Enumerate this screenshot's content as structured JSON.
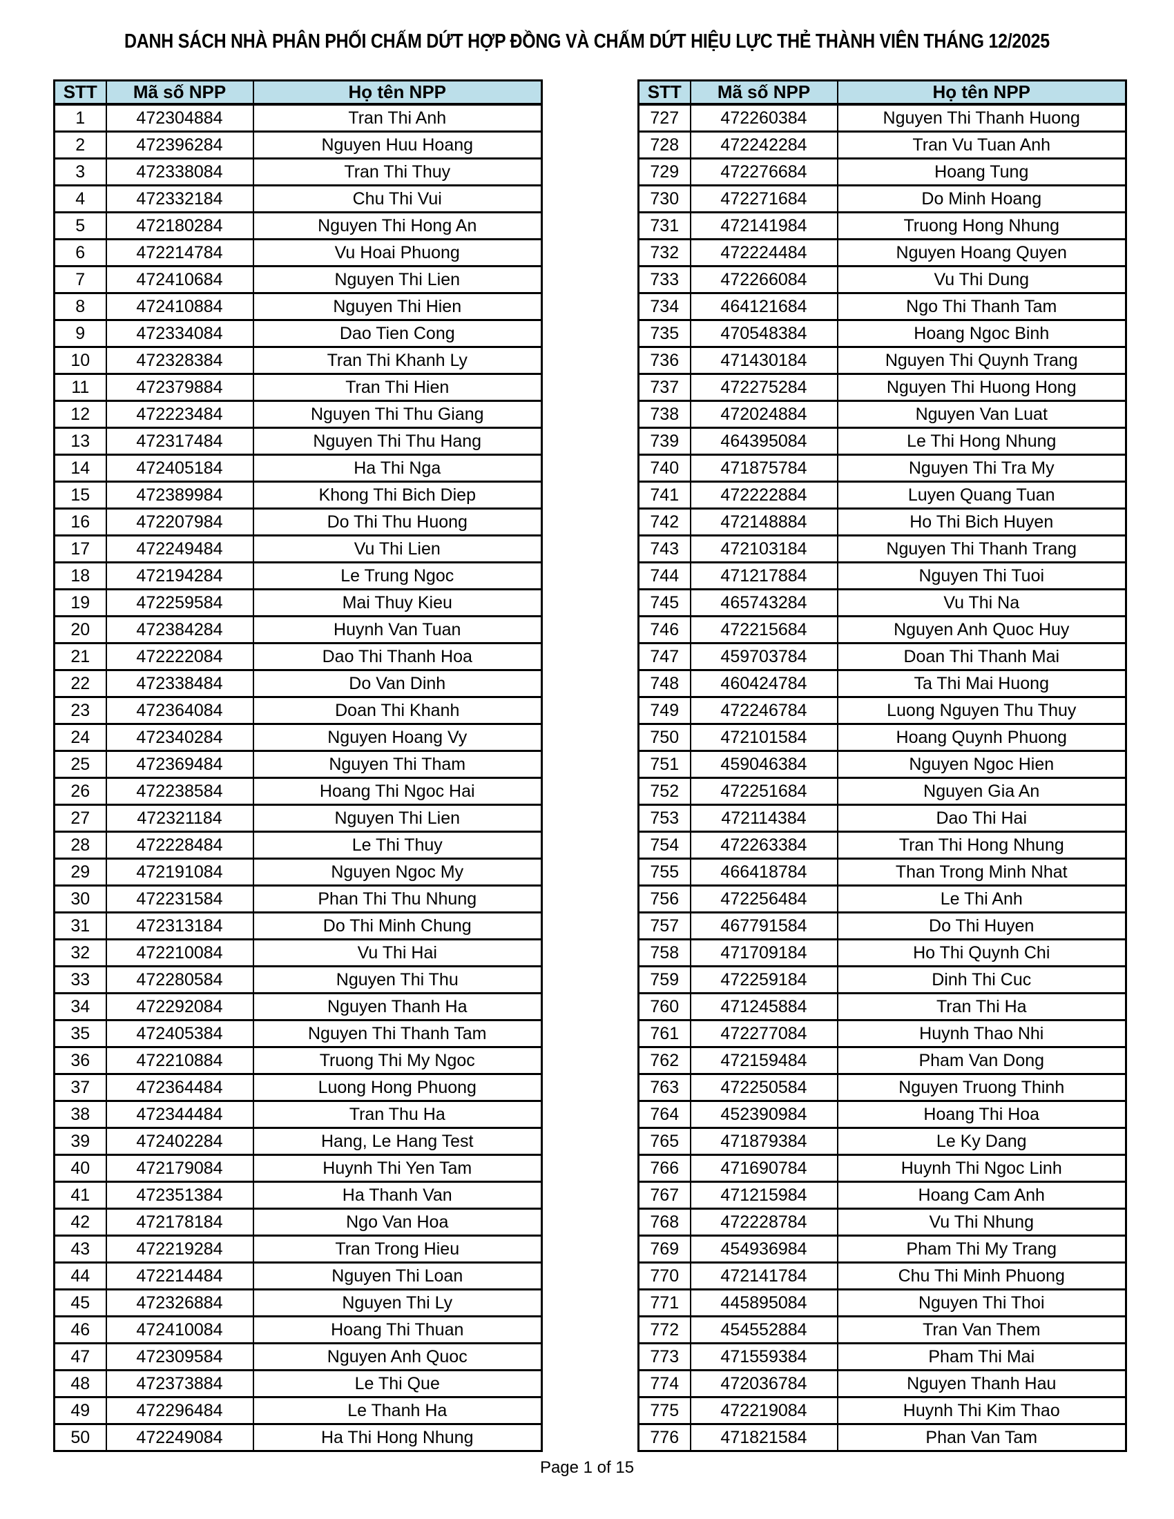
{
  "page": {
    "title": "DANH SÁCH NHÀ PHÂN PHỐI CHẤM DỨT HỢP ĐỒNG VÀ CHẤM DỨT HIỆU LỰC THẺ THÀNH VIÊN THÁNG 12/2025",
    "footer": "Page 1 of 15"
  },
  "columns": {
    "stt": "STT",
    "code": "Mã số NPP",
    "name": "Họ tên NPP"
  },
  "colors": {
    "header_bg": "#BCDFEA",
    "border": "#000000",
    "text": "#000000",
    "page_bg": "#FFFFFF"
  },
  "left_table": {
    "rows": [
      [
        "1",
        "472304884",
        "Tran Thi Anh"
      ],
      [
        "2",
        "472396284",
        "Nguyen Huu Hoang"
      ],
      [
        "3",
        "472338084",
        "Tran Thi Thuy"
      ],
      [
        "4",
        "472332184",
        "Chu Thi Vui"
      ],
      [
        "5",
        "472180284",
        "Nguyen Thi Hong An"
      ],
      [
        "6",
        "472214784",
        "Vu Hoai Phuong"
      ],
      [
        "7",
        "472410684",
        "Nguyen Thi Lien"
      ],
      [
        "8",
        "472410884",
        "Nguyen Thi Hien"
      ],
      [
        "9",
        "472334084",
        "Dao Tien Cong"
      ],
      [
        "10",
        "472328384",
        "Tran Thi Khanh Ly"
      ],
      [
        "11",
        "472379884",
        "Tran Thi Hien"
      ],
      [
        "12",
        "472223484",
        "Nguyen Thi Thu Giang"
      ],
      [
        "13",
        "472317484",
        "Nguyen Thi Thu Hang"
      ],
      [
        "14",
        "472405184",
        "Ha Thi Nga"
      ],
      [
        "15",
        "472389984",
        "Khong Thi Bich Diep"
      ],
      [
        "16",
        "472207984",
        "Do Thi Thu Huong"
      ],
      [
        "17",
        "472249484",
        "Vu Thi Lien"
      ],
      [
        "18",
        "472194284",
        "Le Trung Ngoc"
      ],
      [
        "19",
        "472259584",
        "Mai Thuy Kieu"
      ],
      [
        "20",
        "472384284",
        "Huynh Van Tuan"
      ],
      [
        "21",
        "472222084",
        "Dao Thi Thanh Hoa"
      ],
      [
        "22",
        "472338484",
        "Do Van Dinh"
      ],
      [
        "23",
        "472364084",
        "Doan Thi Khanh"
      ],
      [
        "24",
        "472340284",
        "Nguyen Hoang Vy"
      ],
      [
        "25",
        "472369484",
        "Nguyen Thi Tham"
      ],
      [
        "26",
        "472238584",
        "Hoang Thi Ngoc Hai"
      ],
      [
        "27",
        "472321184",
        "Nguyen Thi Lien"
      ],
      [
        "28",
        "472228484",
        "Le Thi Thuy"
      ],
      [
        "29",
        "472191084",
        "Nguyen Ngoc My"
      ],
      [
        "30",
        "472231584",
        "Phan Thi Thu Nhung"
      ],
      [
        "31",
        "472313184",
        "Do Thi Minh Chung"
      ],
      [
        "32",
        "472210084",
        "Vu Thi Hai"
      ],
      [
        "33",
        "472280584",
        "Nguyen Thi Thu"
      ],
      [
        "34",
        "472292084",
        "Nguyen Thanh Ha"
      ],
      [
        "35",
        "472405384",
        "Nguyen Thi Thanh Tam"
      ],
      [
        "36",
        "472210884",
        "Truong Thi My Ngoc"
      ],
      [
        "37",
        "472364484",
        "Luong Hong Phuong"
      ],
      [
        "38",
        "472344484",
        "Tran Thu Ha"
      ],
      [
        "39",
        "472402284",
        "Hang, Le Hang Test"
      ],
      [
        "40",
        "472179084",
        "Huynh Thi Yen Tam"
      ],
      [
        "41",
        "472351384",
        "Ha Thanh Van"
      ],
      [
        "42",
        "472178184",
        "Ngo Van Hoa"
      ],
      [
        "43",
        "472219284",
        "Tran Trong Hieu"
      ],
      [
        "44",
        "472214484",
        "Nguyen Thi Loan"
      ],
      [
        "45",
        "472326884",
        "Nguyen Thi Ly"
      ],
      [
        "46",
        "472410084",
        "Hoang Thi Thuan"
      ],
      [
        "47",
        "472309584",
        "Nguyen Anh Quoc"
      ],
      [
        "48",
        "472373884",
        "Le Thi Que"
      ],
      [
        "49",
        "472296484",
        "Le Thanh Ha"
      ],
      [
        "50",
        "472249084",
        "Ha Thi Hong Nhung"
      ]
    ]
  },
  "right_table": {
    "rows": [
      [
        "727",
        "472260384",
        "Nguyen Thi Thanh Huong"
      ],
      [
        "728",
        "472242284",
        "Tran Vu Tuan Anh"
      ],
      [
        "729",
        "472276684",
        "Hoang Tung"
      ],
      [
        "730",
        "472271684",
        "Do Minh Hoang"
      ],
      [
        "731",
        "472141984",
        "Truong Hong Nhung"
      ],
      [
        "732",
        "472224484",
        "Nguyen Hoang Quyen"
      ],
      [
        "733",
        "472266084",
        "Vu Thi Dung"
      ],
      [
        "734",
        "464121684",
        "Ngo Thi Thanh Tam"
      ],
      [
        "735",
        "470548384",
        "Hoang Ngoc Binh"
      ],
      [
        "736",
        "471430184",
        "Nguyen Thi Quynh Trang"
      ],
      [
        "737",
        "472275284",
        "Nguyen Thi Huong Hong"
      ],
      [
        "738",
        "472024884",
        "Nguyen Van Luat"
      ],
      [
        "739",
        "464395084",
        "Le Thi Hong Nhung"
      ],
      [
        "740",
        "471875784",
        "Nguyen Thi Tra My"
      ],
      [
        "741",
        "472222884",
        "Luyen Quang Tuan"
      ],
      [
        "742",
        "472148884",
        "Ho Thi Bich Huyen"
      ],
      [
        "743",
        "472103184",
        "Nguyen Thi Thanh Trang"
      ],
      [
        "744",
        "471217884",
        "Nguyen Thi Tuoi"
      ],
      [
        "745",
        "465743284",
        "Vu Thi Na"
      ],
      [
        "746",
        "472215684",
        "Nguyen Anh Quoc Huy"
      ],
      [
        "747",
        "459703784",
        "Doan Thi Thanh Mai"
      ],
      [
        "748",
        "460424784",
        "Ta Thi Mai Huong"
      ],
      [
        "749",
        "472246784",
        "Luong Nguyen Thu Thuy"
      ],
      [
        "750",
        "472101584",
        "Hoang Quynh Phuong"
      ],
      [
        "751",
        "459046384",
        "Nguyen Ngoc Hien"
      ],
      [
        "752",
        "472251684",
        "Nguyen Gia An"
      ],
      [
        "753",
        "472114384",
        "Dao Thi Hai"
      ],
      [
        "754",
        "472263384",
        "Tran Thi Hong Nhung"
      ],
      [
        "755",
        "466418784",
        "Than Trong Minh Nhat"
      ],
      [
        "756",
        "472256484",
        "Le Thi Anh"
      ],
      [
        "757",
        "467791584",
        "Do Thi Huyen"
      ],
      [
        "758",
        "471709184",
        "Ho Thi Quynh Chi"
      ],
      [
        "759",
        "472259184",
        "Dinh Thi Cuc"
      ],
      [
        "760",
        "471245884",
        "Tran Thi Ha"
      ],
      [
        "761",
        "472277084",
        "Huynh Thao Nhi"
      ],
      [
        "762",
        "472159484",
        "Pham Van Dong"
      ],
      [
        "763",
        "472250584",
        "Nguyen Truong Thinh"
      ],
      [
        "764",
        "452390984",
        "Hoang Thi Hoa"
      ],
      [
        "765",
        "471879384",
        "Le Ky Dang"
      ],
      [
        "766",
        "471690784",
        "Huynh Thi Ngoc Linh"
      ],
      [
        "767",
        "471215984",
        "Hoang Cam Anh"
      ],
      [
        "768",
        "472228784",
        "Vu Thi Nhung"
      ],
      [
        "769",
        "454936984",
        "Pham Thi My Trang"
      ],
      [
        "770",
        "472141784",
        "Chu Thi Minh Phuong"
      ],
      [
        "771",
        "445895084",
        "Nguyen Thi Thoi"
      ],
      [
        "772",
        "454552884",
        "Tran Van Them"
      ],
      [
        "773",
        "471559384",
        "Pham Thi Mai"
      ],
      [
        "774",
        "472036784",
        "Nguyen Thanh Hau"
      ],
      [
        "775",
        "472219084",
        "Huynh Thi Kim Thao"
      ],
      [
        "776",
        "471821584",
        "Phan Van Tam"
      ]
    ]
  }
}
